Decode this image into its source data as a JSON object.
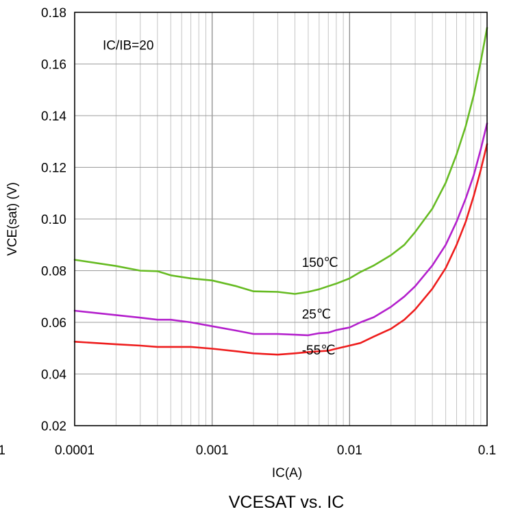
{
  "chart_data": {
    "type": "line",
    "title": "VCESAT vs. IC",
    "xlabel": "IC(A)",
    "ylabel": "VCE(sat) (V)",
    "x_scale": "log",
    "xlim": [
      0.0001,
      0.1
    ],
    "ylim": [
      0.02,
      0.18
    ],
    "grid": true,
    "x_ticks": [
      "0.0001",
      "0.001",
      "0.01",
      "0.1"
    ],
    "left_clipped_tick": "1",
    "y_ticks": [
      "0.02",
      "0.04",
      "0.06",
      "0.08",
      "0.10",
      "0.12",
      "0.14",
      "0.16",
      "0.18"
    ],
    "annotations": [
      {
        "text": "IC/IB=20",
        "x": 0.00016,
        "y": 0.1655
      },
      {
        "text": "150℃",
        "x": 0.0045,
        "y": 0.0815
      },
      {
        "text": "25℃",
        "x": 0.0045,
        "y": 0.0615
      },
      {
        "text": "-55℃",
        "x": 0.0045,
        "y": 0.0475
      }
    ],
    "series": [
      {
        "name": "150℃",
        "color": "#66bb22",
        "x": [
          0.0001,
          0.0002,
          0.0003,
          0.0004,
          0.0005,
          0.0007,
          0.001,
          0.0015,
          0.002,
          0.003,
          0.004,
          0.005,
          0.006,
          0.007,
          0.008,
          0.01,
          0.012,
          0.015,
          0.02,
          0.025,
          0.03,
          0.04,
          0.05,
          0.06,
          0.07,
          0.08,
          0.09,
          0.1
        ],
        "values": [
          0.0842,
          0.0818,
          0.08,
          0.0798,
          0.0782,
          0.077,
          0.0762,
          0.074,
          0.072,
          0.0718,
          0.071,
          0.0718,
          0.0728,
          0.074,
          0.075,
          0.077,
          0.0795,
          0.082,
          0.086,
          0.09,
          0.095,
          0.104,
          0.114,
          0.125,
          0.136,
          0.148,
          0.161,
          0.174
        ]
      },
      {
        "name": "25℃",
        "color": "#b31fcc",
        "x": [
          0.0001,
          0.0002,
          0.0003,
          0.0004,
          0.0005,
          0.0007,
          0.001,
          0.0015,
          0.002,
          0.003,
          0.004,
          0.005,
          0.006,
          0.007,
          0.008,
          0.01,
          0.012,
          0.015,
          0.02,
          0.025,
          0.03,
          0.04,
          0.05,
          0.06,
          0.07,
          0.08,
          0.09,
          0.1
        ],
        "values": [
          0.0645,
          0.0628,
          0.0618,
          0.061,
          0.061,
          0.06,
          0.0585,
          0.0568,
          0.0555,
          0.0555,
          0.0552,
          0.055,
          0.0558,
          0.056,
          0.057,
          0.058,
          0.06,
          0.062,
          0.066,
          0.07,
          0.074,
          0.082,
          0.09,
          0.099,
          0.108,
          0.117,
          0.127,
          0.137
        ]
      },
      {
        "name": "-55℃",
        "color": "#ee1c1c",
        "x": [
          0.0001,
          0.0002,
          0.0003,
          0.0004,
          0.0005,
          0.0007,
          0.001,
          0.0015,
          0.002,
          0.003,
          0.004,
          0.005,
          0.006,
          0.007,
          0.008,
          0.01,
          0.012,
          0.015,
          0.02,
          0.025,
          0.03,
          0.04,
          0.05,
          0.06,
          0.07,
          0.08,
          0.09,
          0.1
        ],
        "values": [
          0.0525,
          0.0515,
          0.051,
          0.0505,
          0.0505,
          0.0505,
          0.0498,
          0.0488,
          0.048,
          0.0475,
          0.048,
          0.0485,
          0.0488,
          0.049,
          0.0498,
          0.051,
          0.052,
          0.0545,
          0.0575,
          0.061,
          0.065,
          0.073,
          0.081,
          0.09,
          0.099,
          0.109,
          0.119,
          0.129
        ]
      }
    ]
  }
}
